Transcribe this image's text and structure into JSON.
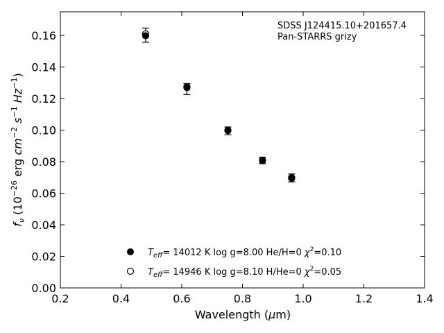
{
  "chart_data": {
    "type": "scatter",
    "xlabel_prefix": "Wavelength (",
    "xlabel_unit_symbol": "μ",
    "xlabel_unit_rest": "m)",
    "ylabel_parts": {
      "f": "f",
      "nu": "ν",
      "mid": " (10",
      "exp1": "−26",
      "erg": " erg ",
      "cm": "cm",
      "exp2": "−2",
      "s": " s",
      "exp3": "−1",
      "hz": " Hz",
      "exp4": "−1",
      "close": ")"
    },
    "xlim": [
      0.2,
      1.4
    ],
    "ylim": [
      0.0,
      0.175
    ],
    "x_ticks": [
      "0.2",
      "0.4",
      "0.6",
      "0.8",
      "1.0",
      "1.2",
      "1.4"
    ],
    "y_ticks": [
      "0.00",
      "0.02",
      "0.04",
      "0.06",
      "0.08",
      "0.10",
      "0.12",
      "0.14",
      "0.16"
    ],
    "annotation_lines": [
      "SDSS J124415.10+201657.4",
      "Pan-STARRS grizy"
    ],
    "observed": [
      {
        "x": 0.481,
        "y": 0.1602,
        "err": 0.0045
      },
      {
        "x": 0.617,
        "y": 0.126,
        "err": 0.0035
      },
      {
        "x": 0.752,
        "y": 0.0995,
        "err": 0.0025
      },
      {
        "x": 0.866,
        "y": 0.0808,
        "err": 0.002
      },
      {
        "x": 0.962,
        "y": 0.0697,
        "err": 0.0025
      }
    ],
    "series": [
      {
        "marker": "filled",
        "legend": {
          "T": "T",
          "sub": "eff",
          "rest": "= 14012 K  log g=8.00  He/H=0  ",
          "chi": "χ",
          "chi_exp": "2",
          "chi_val": "=0.10"
        },
        "values": [
          {
            "x": 0.481,
            "y": 0.1598
          },
          {
            "x": 0.617,
            "y": 0.127
          },
          {
            "x": 0.752,
            "y": 0.0997
          },
          {
            "x": 0.866,
            "y": 0.0806
          },
          {
            "x": 0.962,
            "y": 0.0695
          }
        ]
      },
      {
        "marker": "open",
        "legend": {
          "T": "T",
          "sub": "eff",
          "rest": "= 14946 K  log g=8.10  H/He=0  ",
          "chi": "χ",
          "chi_exp": "2",
          "chi_val": "=0.05"
        },
        "values": [
          {
            "x": 0.481,
            "y": 0.161
          },
          {
            "x": 0.617,
            "y": 0.1275
          },
          {
            "x": 0.752,
            "y": 0.1
          },
          {
            "x": 0.866,
            "y": 0.081
          },
          {
            "x": 0.962,
            "y": 0.07
          }
        ]
      }
    ],
    "grid": false,
    "legend_placement": "lower-center"
  }
}
